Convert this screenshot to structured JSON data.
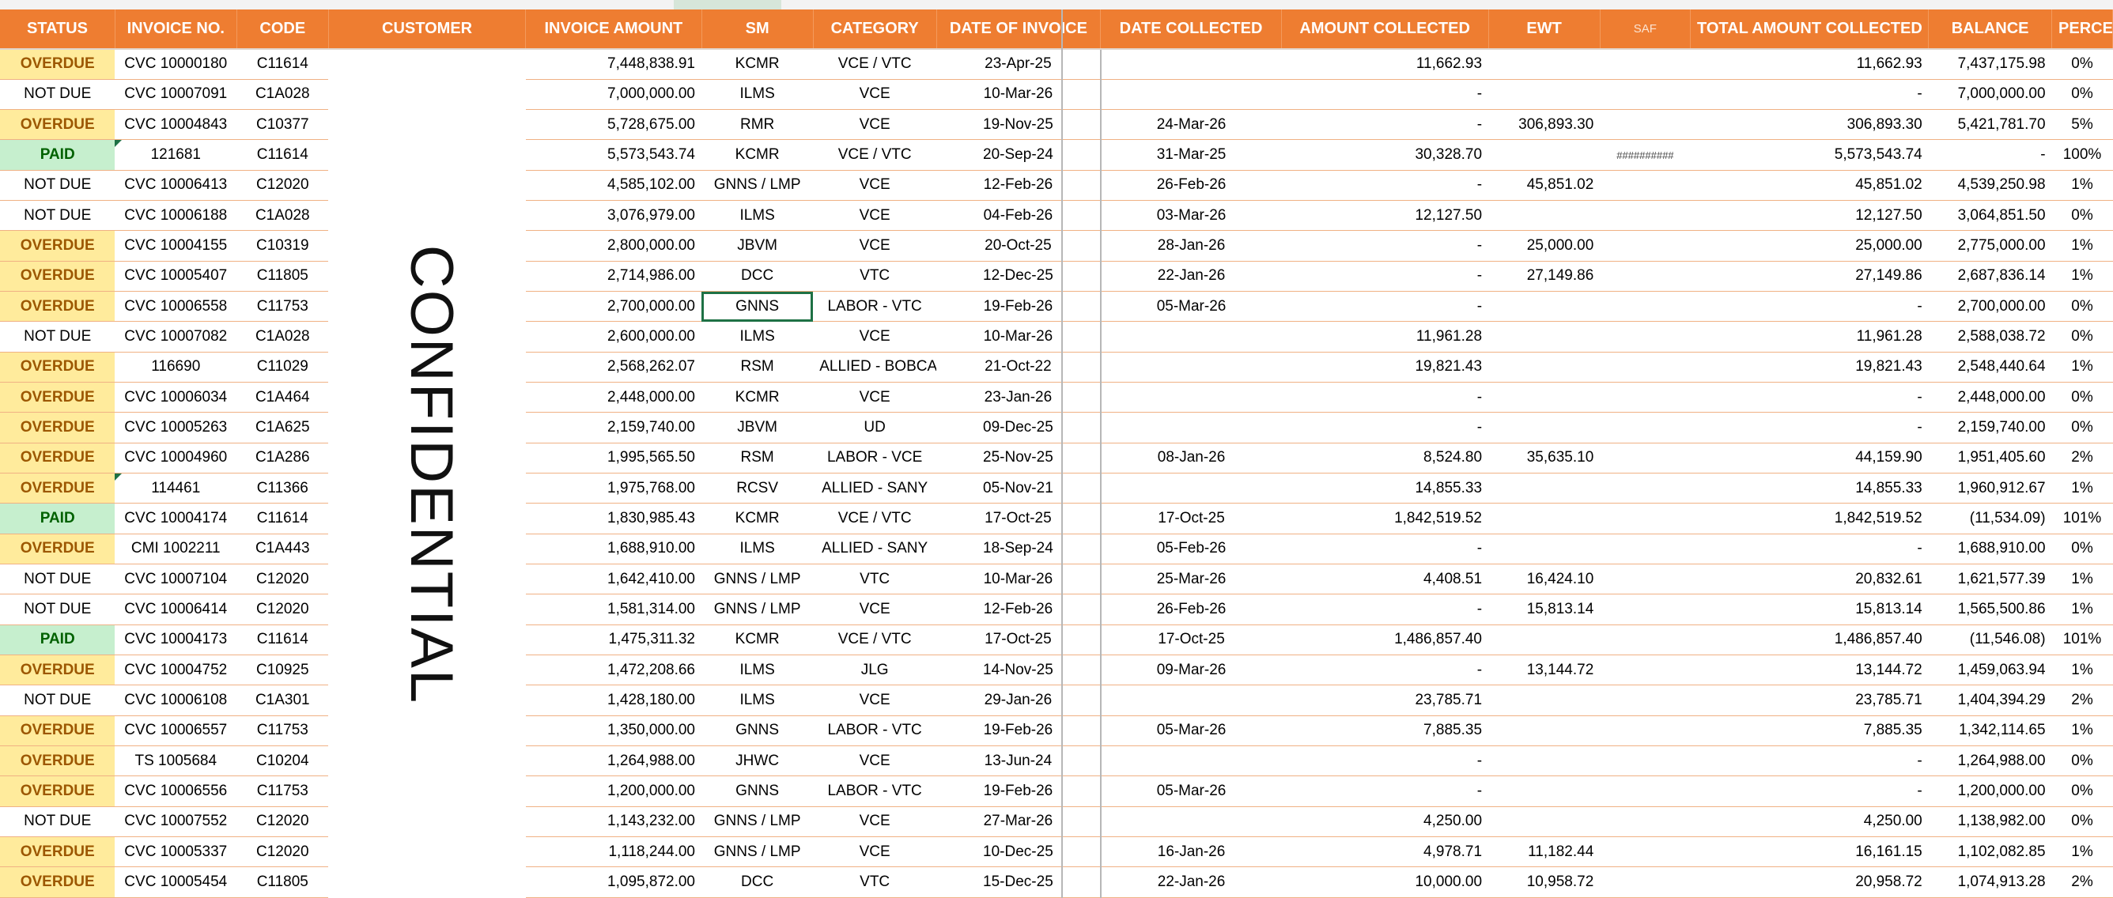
{
  "sheet": {
    "selected_cell": "GNNS",
    "watermark": "CONFIDENTIAL",
    "headers": [
      "STATUS",
      "INVOICE NO.",
      "CODE",
      "CUSTOMER",
      "INVOICE AMOUNT",
      "SM",
      "CATEGORY",
      "DATE OF INVOICE",
      "DATE COLLECTED",
      "AMOUNT COLLECTED",
      "EWT",
      "SAF",
      "TOTAL AMOUNT COLLECTED",
      "BALANCE",
      "PERCENTAGE"
    ],
    "rows": [
      {
        "status": "OVERDUE",
        "invoice": "CVC 10000180",
        "code": "C11614",
        "amount": "7,448,838.91",
        "sm": "KCMR",
        "category": "VCE / VTC",
        "date_invoice": "23-Apr-25",
        "date_collected": "",
        "amount_collected": "11,662.93",
        "ewt": "",
        "saf": "",
        "total": "11,662.93",
        "balance": "7,437,175.98",
        "pct": "0%"
      },
      {
        "status": "NOT DUE",
        "invoice": "CVC 10007091",
        "code": "C1A028",
        "amount": "7,000,000.00",
        "sm": "ILMS",
        "category": "VCE",
        "date_invoice": "10-Mar-26",
        "date_collected": "",
        "amount_collected": "-",
        "ewt": "",
        "saf": "",
        "total": "-",
        "balance": "7,000,000.00",
        "pct": "0%"
      },
      {
        "status": "OVERDUE",
        "invoice": "CVC 10004843",
        "code": "C10377",
        "amount": "5,728,675.00",
        "sm": "RMR",
        "category": "VCE",
        "date_invoice": "19-Nov-25",
        "date_collected": "24-Mar-26",
        "amount_collected": "-",
        "ewt": "306,893.30",
        "saf": "",
        "total": "306,893.30",
        "balance": "5,421,781.70",
        "pct": "5%"
      },
      {
        "status": "PAID",
        "invoice": "121681",
        "code": "C11614",
        "amount": "5,573,543.74",
        "sm": "KCMR",
        "category": "VCE / VTC",
        "date_invoice": "20-Sep-24",
        "date_collected": "31-Mar-25",
        "amount_collected": "30,328.70",
        "ewt": "",
        "saf": "##########",
        "total": "5,573,543.74",
        "balance": "-",
        "pct": "100%"
      },
      {
        "status": "NOT DUE",
        "invoice": "CVC 10006413",
        "code": "C12020",
        "amount": "4,585,102.00",
        "sm": "GNNS / LMP",
        "category": "VCE",
        "date_invoice": "12-Feb-26",
        "date_collected": "26-Feb-26",
        "amount_collected": "-",
        "ewt": "45,851.02",
        "saf": "",
        "total": "45,851.02",
        "balance": "4,539,250.98",
        "pct": "1%"
      },
      {
        "status": "NOT DUE",
        "invoice": "CVC 10006188",
        "code": "C1A028",
        "amount": "3,076,979.00",
        "sm": "ILMS",
        "category": "VCE",
        "date_invoice": "04-Feb-26",
        "date_collected": "03-Mar-26",
        "amount_collected": "12,127.50",
        "ewt": "",
        "saf": "",
        "total": "12,127.50",
        "balance": "3,064,851.50",
        "pct": "0%"
      },
      {
        "status": "OVERDUE",
        "invoice": "CVC 10004155",
        "code": "C10319",
        "amount": "2,800,000.00",
        "sm": "JBVM",
        "category": "VCE",
        "date_invoice": "20-Oct-25",
        "date_collected": "28-Jan-26",
        "amount_collected": "-",
        "ewt": "25,000.00",
        "saf": "",
        "total": "25,000.00",
        "balance": "2,775,000.00",
        "pct": "1%"
      },
      {
        "status": "OVERDUE",
        "invoice": "CVC 10005407",
        "code": "C11805",
        "amount": "2,714,986.00",
        "sm": "DCC",
        "category": "VTC",
        "date_invoice": "12-Dec-25",
        "date_collected": "22-Jan-26",
        "amount_collected": "-",
        "ewt": "27,149.86",
        "saf": "",
        "total": "27,149.86",
        "balance": "2,687,836.14",
        "pct": "1%"
      },
      {
        "status": "OVERDUE",
        "invoice": "CVC 10006558",
        "code": "C11753",
        "amount": "2,700,000.00",
        "sm": "GNNS",
        "category": "LABOR - VTC",
        "date_invoice": "19-Feb-26",
        "date_collected": "05-Mar-26",
        "amount_collected": "-",
        "ewt": "",
        "saf": "",
        "total": "-",
        "balance": "2,700,000.00",
        "pct": "0%"
      },
      {
        "status": "NOT DUE",
        "invoice": "CVC 10007082",
        "code": "C1A028",
        "amount": "2,600,000.00",
        "sm": "ILMS",
        "category": "VCE",
        "date_invoice": "10-Mar-26",
        "date_collected": "",
        "amount_collected": "11,961.28",
        "ewt": "",
        "saf": "",
        "total": "11,961.28",
        "balance": "2,588,038.72",
        "pct": "0%"
      },
      {
        "status": "OVERDUE",
        "invoice": "116690",
        "code": "C11029",
        "amount": "2,568,262.07",
        "sm": "RSM",
        "category": "ALLIED - BOBCAT",
        "date_invoice": "21-Oct-22",
        "date_collected": "",
        "amount_collected": "19,821.43",
        "ewt": "",
        "saf": "",
        "total": "19,821.43",
        "balance": "2,548,440.64",
        "pct": "1%"
      },
      {
        "status": "OVERDUE",
        "invoice": "CVC 10006034",
        "code": "C1A464",
        "amount": "2,448,000.00",
        "sm": "KCMR",
        "category": "VCE",
        "date_invoice": "23-Jan-26",
        "date_collected": "",
        "amount_collected": "-",
        "ewt": "",
        "saf": "",
        "total": "-",
        "balance": "2,448,000.00",
        "pct": "0%"
      },
      {
        "status": "OVERDUE",
        "invoice": "CVC 10005263",
        "code": "C1A625",
        "amount": "2,159,740.00",
        "sm": "JBVM",
        "category": "UD",
        "date_invoice": "09-Dec-25",
        "date_collected": "",
        "amount_collected": "-",
        "ewt": "",
        "saf": "",
        "total": "-",
        "balance": "2,159,740.00",
        "pct": "0%"
      },
      {
        "status": "OVERDUE",
        "invoice": "CVC 10004960",
        "code": "C1A286",
        "amount": "1,995,565.50",
        "sm": "RSM",
        "category": "LABOR - VCE",
        "date_invoice": "25-Nov-25",
        "date_collected": "08-Jan-26",
        "amount_collected": "8,524.80",
        "ewt": "35,635.10",
        "saf": "",
        "total": "44,159.90",
        "balance": "1,951,405.60",
        "pct": "2%"
      },
      {
        "status": "OVERDUE",
        "invoice": "114461",
        "code": "C11366",
        "amount": "1,975,768.00",
        "sm": "RCSV",
        "category": "ALLIED - SANY",
        "date_invoice": "05-Nov-21",
        "date_collected": "",
        "amount_collected": "14,855.33",
        "ewt": "",
        "saf": "",
        "total": "14,855.33",
        "balance": "1,960,912.67",
        "pct": "1%"
      },
      {
        "status": "PAID",
        "invoice": "CVC 10004174",
        "code": "C11614",
        "amount": "1,830,985.43",
        "sm": "KCMR",
        "category": "VCE / VTC",
        "date_invoice": "17-Oct-25",
        "date_collected": "17-Oct-25",
        "amount_collected": "1,842,519.52",
        "ewt": "",
        "saf": "",
        "total": "1,842,519.52",
        "balance": "(11,534.09)",
        "pct": "101%"
      },
      {
        "status": "OVERDUE",
        "invoice": "CMI 1002211",
        "code": "C1A443",
        "amount": "1,688,910.00",
        "sm": "ILMS",
        "category": "ALLIED - SANY",
        "date_invoice": "18-Sep-24",
        "date_collected": "05-Feb-26",
        "amount_collected": "-",
        "ewt": "",
        "saf": "",
        "total": "-",
        "balance": "1,688,910.00",
        "pct": "0%"
      },
      {
        "status": "NOT DUE",
        "invoice": "CVC 10007104",
        "code": "C12020",
        "amount": "1,642,410.00",
        "sm": "GNNS / LMP",
        "category": "VTC",
        "date_invoice": "10-Mar-26",
        "date_collected": "25-Mar-26",
        "amount_collected": "4,408.51",
        "ewt": "16,424.10",
        "saf": "",
        "total": "20,832.61",
        "balance": "1,621,577.39",
        "pct": "1%"
      },
      {
        "status": "NOT DUE",
        "invoice": "CVC 10006414",
        "code": "C12020",
        "amount": "1,581,314.00",
        "sm": "GNNS / LMP",
        "category": "VCE",
        "date_invoice": "12-Feb-26",
        "date_collected": "26-Feb-26",
        "amount_collected": "-",
        "ewt": "15,813.14",
        "saf": "",
        "total": "15,813.14",
        "balance": "1,565,500.86",
        "pct": "1%"
      },
      {
        "status": "PAID",
        "invoice": "CVC 10004173",
        "code": "C11614",
        "amount": "1,475,311.32",
        "sm": "KCMR",
        "category": "VCE / VTC",
        "date_invoice": "17-Oct-25",
        "date_collected": "17-Oct-25",
        "amount_collected": "1,486,857.40",
        "ewt": "",
        "saf": "",
        "total": "1,486,857.40",
        "balance": "(11,546.08)",
        "pct": "101%"
      },
      {
        "status": "OVERDUE",
        "invoice": "CVC 10004752",
        "code": "C10925",
        "amount": "1,472,208.66",
        "sm": "ILMS",
        "category": "JLG",
        "date_invoice": "14-Nov-25",
        "date_collected": "09-Mar-26",
        "amount_collected": "-",
        "ewt": "13,144.72",
        "saf": "",
        "total": "13,144.72",
        "balance": "1,459,063.94",
        "pct": "1%"
      },
      {
        "status": "NOT DUE",
        "invoice": "CVC 10006108",
        "code": "C1A301",
        "amount": "1,428,180.00",
        "sm": "ILMS",
        "category": "VCE",
        "date_invoice": "29-Jan-26",
        "date_collected": "",
        "amount_collected": "23,785.71",
        "ewt": "",
        "saf": "",
        "total": "23,785.71",
        "balance": "1,404,394.29",
        "pct": "2%"
      },
      {
        "status": "OVERDUE",
        "invoice": "CVC 10006557",
        "code": "C11753",
        "amount": "1,350,000.00",
        "sm": "GNNS",
        "category": "LABOR - VTC",
        "date_invoice": "19-Feb-26",
        "date_collected": "05-Mar-26",
        "amount_collected": "7,885.35",
        "ewt": "",
        "saf": "",
        "total": "7,885.35",
        "balance": "1,342,114.65",
        "pct": "1%"
      },
      {
        "status": "OVERDUE",
        "invoice": "TS 1005684",
        "code": "C10204",
        "amount": "1,264,988.00",
        "sm": "JHWC",
        "category": "VCE",
        "date_invoice": "13-Jun-24",
        "date_collected": "",
        "amount_collected": "-",
        "ewt": "",
        "saf": "",
        "total": "-",
        "balance": "1,264,988.00",
        "pct": "0%"
      },
      {
        "status": "OVERDUE",
        "invoice": "CVC 10006556",
        "code": "C11753",
        "amount": "1,200,000.00",
        "sm": "GNNS",
        "category": "LABOR - VTC",
        "date_invoice": "19-Feb-26",
        "date_collected": "05-Mar-26",
        "amount_collected": "-",
        "ewt": "",
        "saf": "",
        "total": "-",
        "balance": "1,200,000.00",
        "pct": "0%"
      },
      {
        "status": "NOT DUE",
        "invoice": "CVC 10007552",
        "code": "C12020",
        "amount": "1,143,232.00",
        "sm": "GNNS / LMP",
        "category": "VCE",
        "date_invoice": "27-Mar-26",
        "date_collected": "",
        "amount_collected": "4,250.00",
        "ewt": "",
        "saf": "",
        "total": "4,250.00",
        "balance": "1,138,982.00",
        "pct": "0%"
      },
      {
        "status": "OVERDUE",
        "invoice": "CVC 10005337",
        "code": "C12020",
        "amount": "1,118,244.00",
        "sm": "GNNS / LMP",
        "category": "VCE",
        "date_invoice": "10-Dec-25",
        "date_collected": "16-Jan-26",
        "amount_collected": "4,978.71",
        "ewt": "11,182.44",
        "saf": "",
        "total": "16,161.15",
        "balance": "1,102,082.85",
        "pct": "1%"
      },
      {
        "status": "OVERDUE",
        "invoice": "CVC 10005454",
        "code": "C11805",
        "amount": "1,095,872.00",
        "sm": "DCC",
        "category": "VTC",
        "date_invoice": "15-Dec-25",
        "date_collected": "22-Jan-26",
        "amount_collected": "10,000.00",
        "ewt": "10,958.72",
        "saf": "",
        "total": "20,958.72",
        "balance": "1,074,913.28",
        "pct": "2%"
      }
    ]
  }
}
